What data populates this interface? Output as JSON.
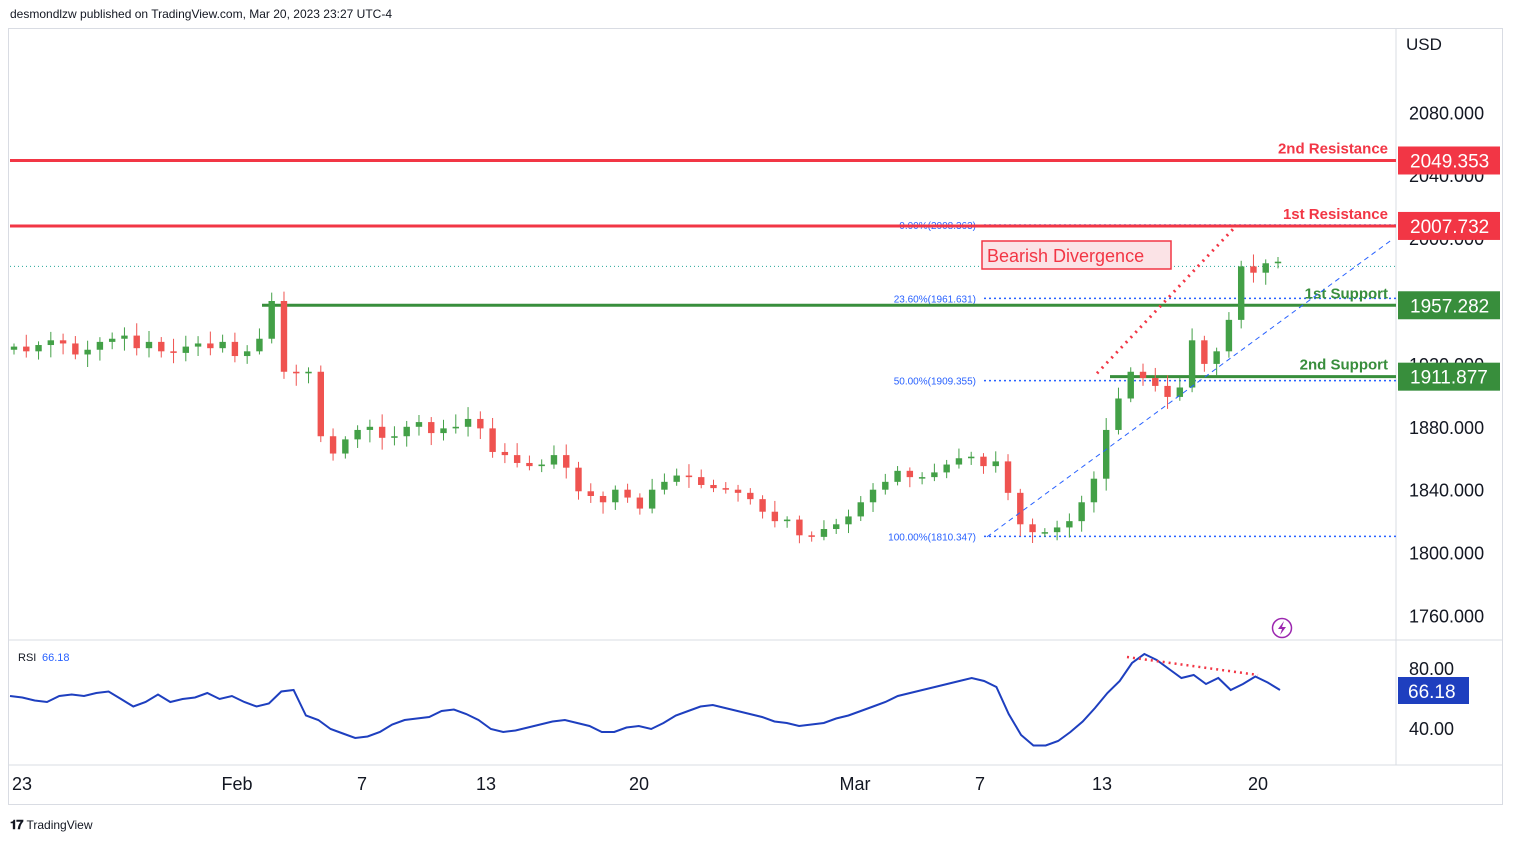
{
  "header": {
    "publisher_line": "desmondlzw published on TradingView.com, Mar 20, 2023 23:27 UTC-4"
  },
  "footer": {
    "brand": "TradingView"
  },
  "colors": {
    "up": "#26a69a",
    "up_body": "#43a047",
    "down": "#ef5350",
    "resistance": "#f23645",
    "support": "#388e3c",
    "fib": "#2962ff",
    "rsi": "#1e3fbf",
    "divergence": "#f23645"
  },
  "chart_data": [
    {
      "type": "candlestick",
      "currency": "USD",
      "y_axis_ticks": [
        "2080.000",
        "2040.000",
        "2000.000",
        "1920.000",
        "1880.000",
        "1840.000",
        "1800.000",
        "1760.000"
      ],
      "ylim": [
        1735,
        2120
      ],
      "x_axis_ticks": [
        "23",
        "Feb",
        "7",
        "13",
        "20",
        "Mar",
        "7",
        "13",
        "20"
      ],
      "levels": [
        {
          "name": "2nd Resistance",
          "value": 2049.353,
          "label": "2049.353",
          "kind": "resistance"
        },
        {
          "name": "1st Resistance",
          "value": 2007.732,
          "label": "2007.732",
          "kind": "resistance"
        },
        {
          "name": "1st Support",
          "value": 1957.282,
          "label": "1957.282",
          "kind": "support"
        },
        {
          "name": "2nd Support",
          "value": 1911.877,
          "label": "1911.877",
          "kind": "support"
        }
      ],
      "fibonacci": [
        {
          "label": "0.00%(2008.363)",
          "value": 2008.363
        },
        {
          "label": "23.60%(1961.631)",
          "value": 1961.631
        },
        {
          "label": "50.00%(1909.355)",
          "value": 1909.355
        },
        {
          "label": "100.00%(1810.347)",
          "value": 1810.347
        }
      ],
      "last_price_line": 1982,
      "annotation": "Bearish Divergence",
      "close_path": [
        1931,
        1928,
        1932,
        1935,
        1933,
        1926,
        1929,
        1934,
        1936,
        1938,
        1930,
        1934,
        1928,
        1927,
        1931,
        1933,
        1930,
        1934,
        1925,
        1928,
        1936,
        1960,
        1915,
        1914,
        1915,
        1874,
        1863,
        1872,
        1878,
        1880,
        1873,
        1874,
        1880,
        1883,
        1876,
        1879,
        1880,
        1885,
        1879,
        1864,
        1862,
        1857,
        1855,
        1856,
        1862,
        1854,
        1839,
        1836,
        1832,
        1840,
        1835,
        1828,
        1840,
        1845,
        1849,
        1848,
        1843,
        1841,
        1840,
        1838,
        1834,
        1826,
        1820,
        1821,
        1811,
        1810,
        1815,
        1818,
        1823,
        1832,
        1840,
        1845,
        1852,
        1848,
        1848,
        1851,
        1856,
        1860,
        1861,
        1855,
        1858,
        1838,
        1818,
        1813,
        1813,
        1816,
        1820,
        1832,
        1847,
        1878,
        1898,
        1915,
        1911,
        1906,
        1899,
        1905,
        1935,
        1920,
        1928,
        1948,
        1982,
        1978,
        1984,
        1985
      ]
    },
    {
      "type": "line",
      "name": "RSI",
      "value_label": "66.18",
      "y_axis_ticks": [
        "80.00",
        "40.00"
      ],
      "ylim": [
        19,
        91
      ],
      "values": [
        62,
        61,
        59,
        58,
        62,
        63,
        62,
        64,
        65,
        60,
        55,
        58,
        63,
        58,
        60,
        61,
        64,
        60,
        62,
        58,
        55,
        57,
        65,
        66,
        49,
        46,
        40,
        37,
        34,
        35,
        38,
        43,
        46,
        47,
        48,
        52,
        53,
        50,
        46,
        40,
        38,
        39,
        41,
        43,
        45,
        46,
        44,
        42,
        38,
        38,
        41,
        42,
        40,
        44,
        49,
        52,
        55,
        56,
        54,
        52,
        50,
        48,
        45,
        44,
        42,
        43,
        44,
        47,
        49,
        52,
        55,
        58,
        62,
        64,
        66,
        68,
        70,
        72,
        74,
        72,
        68,
        50,
        36,
        29,
        29,
        32,
        38,
        45,
        54,
        64,
        72,
        84,
        90,
        86,
        80,
        74,
        76,
        70,
        74,
        66,
        70,
        75,
        71,
        66
      ]
    }
  ]
}
